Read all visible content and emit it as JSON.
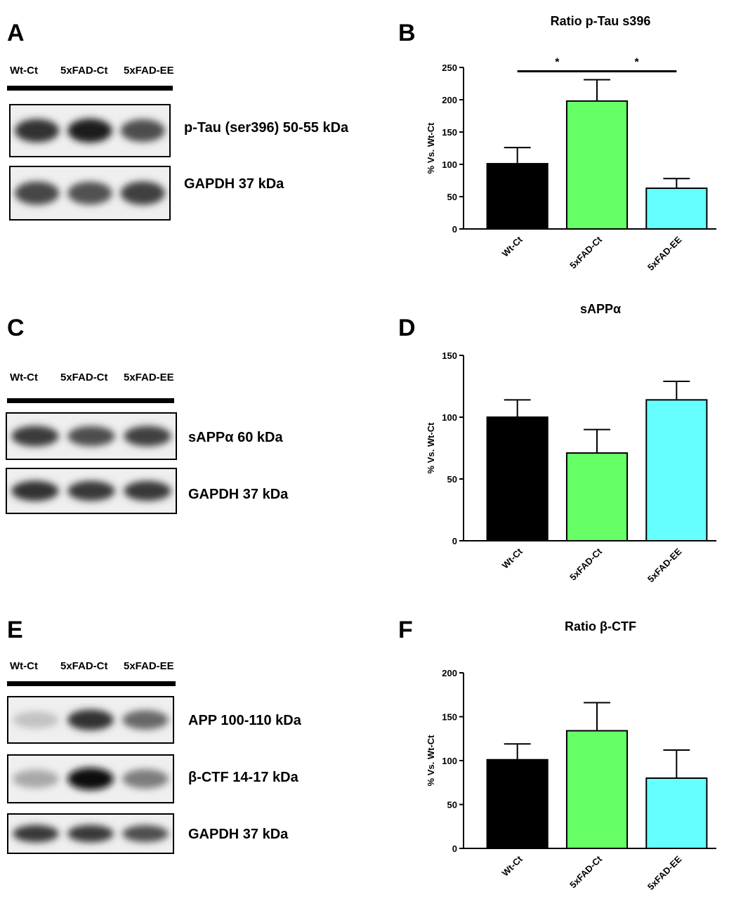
{
  "panels": {
    "A": "A",
    "B": "B",
    "C": "C",
    "D": "D",
    "E": "E",
    "F": "F"
  },
  "lanes": [
    "Wt-Ct",
    "5xFAD-Ct",
    "5xFAD-EE"
  ],
  "blots": {
    "A": [
      {
        "label": "p-Tau (ser396) 50-55 kDa",
        "intensity": [
          0.85,
          0.95,
          0.72
        ]
      },
      {
        "label": "GAPDH 37 kDa",
        "intensity": [
          0.75,
          0.7,
          0.78
        ]
      }
    ],
    "C": [
      {
        "label": "sAPPα 60 kDa",
        "intensity": [
          0.8,
          0.72,
          0.78
        ]
      },
      {
        "label": "GAPDH 37 kDa",
        "intensity": [
          0.85,
          0.82,
          0.82
        ]
      }
    ],
    "E": [
      {
        "label": "APP 100-110 kDa",
        "intensity": [
          0.18,
          0.85,
          0.6
        ]
      },
      {
        "label": "β-CTF 14-17 kDa",
        "intensity": [
          0.3,
          1.0,
          0.5
        ]
      },
      {
        "label": "GAPDH 37 kDa",
        "intensity": [
          0.82,
          0.82,
          0.72
        ]
      }
    ]
  },
  "colors": {
    "wt_ct": "#000000",
    "fad_ct": "#66ff66",
    "fad_ee": "#66ffff"
  },
  "chart_data": [
    {
      "type": "bar",
      "panel": "B",
      "title": "Ratio p-Tau s396",
      "ylabel": "% Vs. Wt-Ct",
      "categories": [
        "Wt-Ct",
        "5xFAD-Ct",
        "5xFAD-EE"
      ],
      "values": [
        101,
        198,
        63
      ],
      "errors": [
        25,
        33,
        15
      ],
      "ylim": [
        0,
        250
      ],
      "yticks": [
        0,
        50,
        100,
        150,
        200,
        250
      ],
      "significance": [
        {
          "from": 0,
          "to": 1,
          "label": "*"
        },
        {
          "from": 1,
          "to": 2,
          "label": "*"
        }
      ]
    },
    {
      "type": "bar",
      "panel": "D",
      "title": "sAPPα",
      "ylabel": "% Vs. Wt-Ct",
      "categories": [
        "Wt-Ct",
        "5xFAD-Ct",
        "5xFAD-EE"
      ],
      "values": [
        100,
        71,
        114
      ],
      "errors": [
        14,
        19,
        15
      ],
      "ylim": [
        0,
        150
      ],
      "yticks": [
        0,
        50,
        100,
        150
      ],
      "significance": []
    },
    {
      "type": "bar",
      "panel": "F",
      "title": "Ratio β-CTF",
      "ylabel": "% Vs. Wt-Ct",
      "categories": [
        "Wt-Ct",
        "5xFAD-Ct",
        "5xFAD-EE"
      ],
      "values": [
        101,
        134,
        80
      ],
      "errors": [
        18,
        32,
        32
      ],
      "ylim": [
        0,
        200
      ],
      "yticks": [
        0,
        50,
        100,
        150,
        200
      ],
      "significance": []
    }
  ]
}
